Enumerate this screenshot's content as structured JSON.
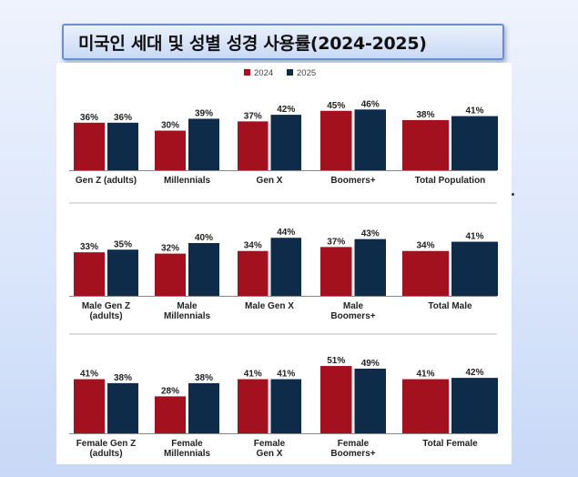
{
  "title": "미국인 세대 및 성별 성경 사용률(2024-2025)",
  "colors": {
    "y2024": "#a3111f",
    "y2025": "#0e2c4a",
    "text": "#222222",
    "divider": "#bbbbbb"
  },
  "chart_data": {
    "type": "bar",
    "legend": {
      "placement": "top-center",
      "entries": [
        "2024",
        "2025"
      ]
    },
    "value_format": "percent",
    "ylim": [
      0,
      60
    ],
    "grid": false,
    "panels": [
      {
        "categories": [
          [
            "Gen Z (adults)"
          ],
          [
            "Millennials"
          ],
          [
            "Gen X"
          ],
          [
            "Boomers+"
          ],
          [
            "Total Population"
          ]
        ],
        "series": [
          {
            "name": "2024",
            "values": [
              36,
              30,
              37,
              45,
              38
            ]
          },
          {
            "name": "2025",
            "values": [
              36,
              39,
              42,
              46,
              41
            ]
          }
        ]
      },
      {
        "categories": [
          [
            "Male Gen Z",
            "(adults)"
          ],
          [
            "Male",
            "Millennials"
          ],
          [
            "Male Gen X"
          ],
          [
            "Male",
            "Boomers+"
          ],
          [
            "Total Male"
          ]
        ],
        "series": [
          {
            "name": "2024",
            "values": [
              33,
              32,
              34,
              37,
              34
            ]
          },
          {
            "name": "2025",
            "values": [
              35,
              40,
              44,
              43,
              41
            ]
          }
        ]
      },
      {
        "categories": [
          [
            "Female Gen Z",
            "(adults)"
          ],
          [
            "Female",
            "Millennials"
          ],
          [
            "Female",
            "Gen X"
          ],
          [
            "Female",
            "Boomers+"
          ],
          [
            "Total Female"
          ]
        ],
        "series": [
          {
            "name": "2024",
            "values": [
              41,
              28,
              41,
              51,
              41
            ]
          },
          {
            "name": "2025",
            "values": [
              38,
              38,
              41,
              49,
              42
            ]
          }
        ]
      }
    ]
  }
}
